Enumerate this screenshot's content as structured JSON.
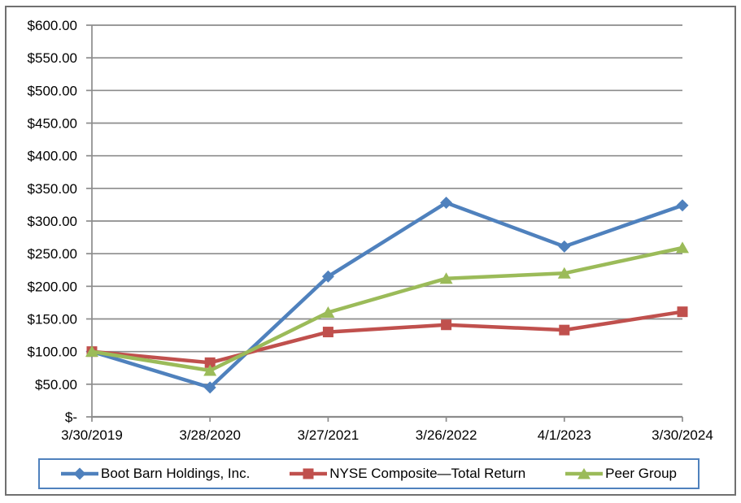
{
  "chart_data": {
    "type": "line",
    "categories": [
      "3/30/2019",
      "3/28/2020",
      "3/27/2021",
      "3/26/2022",
      "4/1/2023",
      "3/30/2024"
    ],
    "series": [
      {
        "name": "Boot Barn Holdings, Inc.",
        "marker": "diamond",
        "color": "#4F81BD",
        "values": [
          100,
          45,
          215,
          328,
          261,
          324
        ]
      },
      {
        "name": "NYSE Composite—Total Return",
        "marker": "square",
        "color": "#C0504D",
        "values": [
          100,
          83,
          130,
          141,
          133,
          161
        ]
      },
      {
        "name": "Peer Group",
        "marker": "triangle",
        "color": "#9BBB59",
        "values": [
          100,
          71,
          160,
          212,
          220,
          259
        ]
      }
    ],
    "ylim": [
      0,
      600
    ],
    "ytick_step": 50,
    "ytick_labels": [
      "$-",
      "$50.00",
      "$100.00",
      "$150.00",
      "$200.00",
      "$250.00",
      "$300.00",
      "$350.00",
      "$400.00",
      "$450.00",
      "$500.00",
      "$550.00",
      "$600.00"
    ],
    "grid": true,
    "legend_position": "bottom"
  },
  "styles": {
    "background": "#FFFFFF",
    "text_color": "#000000",
    "grid_color": "#8C8C8C",
    "axis_color": "#8C8C8C",
    "outer_border_color": "#707070",
    "legend_border_color": "#4F81BD"
  }
}
